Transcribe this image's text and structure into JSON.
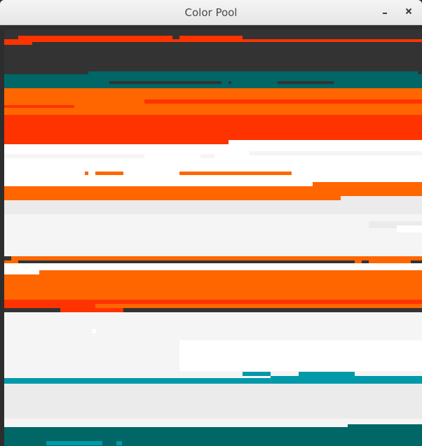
{
  "window": {
    "title": "Color Pool",
    "minimize_label": "‗",
    "close_label": "✕"
  },
  "colors": {
    "dark": "#333333",
    "red": "#ff3300",
    "orange": "#ff6600",
    "teal": "#006666",
    "cyan": "#0099aa",
    "white": "#ffffff",
    "light": "#f5f5f5",
    "gray": "#ebebeb"
  }
}
